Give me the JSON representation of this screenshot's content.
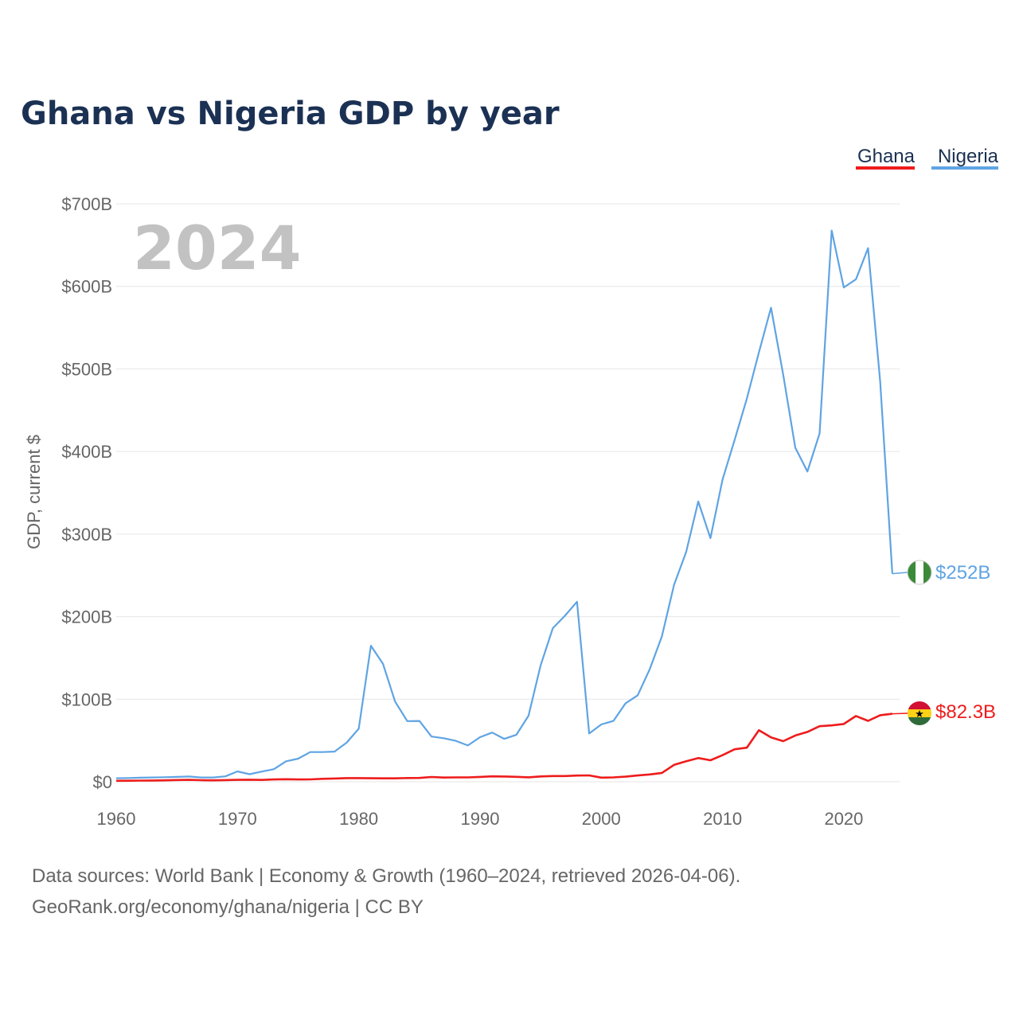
{
  "chart_data": {
    "type": "line",
    "title": "Ghana vs Nigeria GDP by year",
    "ylabel": "GDP, current $",
    "xlabel": "",
    "year_watermark": "2024",
    "xlim": [
      1960,
      2024.6
    ],
    "ylim": [
      0,
      700
    ],
    "y_ticks": [
      {
        "value": 0,
        "label": "$0"
      },
      {
        "value": 100,
        "label": "$100B"
      },
      {
        "value": 200,
        "label": "$200B"
      },
      {
        "value": 300,
        "label": "$300B"
      },
      {
        "value": 400,
        "label": "$400B"
      },
      {
        "value": 500,
        "label": "$500B"
      },
      {
        "value": 600,
        "label": "$600B"
      },
      {
        "value": 700,
        "label": "$700B"
      }
    ],
    "x_ticks": [
      {
        "value": 1960,
        "label": "1960"
      },
      {
        "value": 1970,
        "label": "1970"
      },
      {
        "value": 1980,
        "label": "1980"
      },
      {
        "value": 1990,
        "label": "1990"
      },
      {
        "value": 2000,
        "label": "2000"
      },
      {
        "value": 2010,
        "label": "2010"
      },
      {
        "value": 2020,
        "label": "2020"
      }
    ],
    "x": [
      1960,
      1961,
      1962,
      1963,
      1964,
      1965,
      1966,
      1967,
      1968,
      1969,
      1970,
      1971,
      1972,
      1973,
      1974,
      1975,
      1976,
      1977,
      1978,
      1979,
      1980,
      1981,
      1982,
      1983,
      1984,
      1985,
      1986,
      1987,
      1988,
      1989,
      1990,
      1991,
      1992,
      1993,
      1994,
      1995,
      1996,
      1997,
      1998,
      1999,
      2000,
      2001,
      2002,
      2003,
      2004,
      2005,
      2006,
      2007,
      2008,
      2009,
      2010,
      2011,
      2012,
      2013,
      2014,
      2015,
      2016,
      2017,
      2018,
      2019,
      2020,
      2021,
      2022,
      2023,
      2024
    ],
    "legend_position": "top-right",
    "series": [
      {
        "name": "Ghana",
        "color": "#ee1c1c",
        "end_label": "$82.3B",
        "flag": "ghana-flag",
        "values": [
          1.2,
          1.3,
          1.4,
          1.5,
          1.7,
          2.1,
          2.3,
          1.9,
          1.7,
          2.0,
          2.3,
          2.5,
          2.2,
          2.8,
          3.1,
          2.8,
          2.9,
          3.6,
          4.0,
          4.4,
          4.4,
          4.2,
          4.1,
          4.1,
          4.5,
          4.6,
          5.8,
          5.1,
          5.3,
          5.3,
          5.9,
          6.6,
          6.4,
          6.0,
          5.4,
          6.5,
          6.9,
          6.9,
          7.5,
          7.7,
          5.0,
          5.3,
          6.2,
          7.6,
          8.9,
          10.7,
          20.4,
          24.8,
          28.7,
          26.0,
          32.2,
          39.3,
          41.3,
          62.4,
          53.7,
          49.2,
          56.0,
          60.4,
          67.3,
          68.3,
          70.0,
          79.6,
          73.8,
          80.6,
          82.3
        ]
      },
      {
        "name": "Nigeria",
        "color": "#5fa4e3",
        "end_label": "$252B",
        "flag": "nigeria-flag",
        "values": [
          4.2,
          4.5,
          4.9,
          5.2,
          5.5,
          5.9,
          6.4,
          5.2,
          5.2,
          6.6,
          12.5,
          9.2,
          12.3,
          15.2,
          24.8,
          28.0,
          36.0,
          36.0,
          36.5,
          47.3,
          64.2,
          164.8,
          142.8,
          97.1,
          73.5,
          73.7,
          54.8,
          52.7,
          49.6,
          44.0,
          54.0,
          59.6,
          52.0,
          57.0,
          80.0,
          141.0,
          186.0,
          201.0,
          218.0,
          58.4,
          69.4,
          73.7,
          95.1,
          104.7,
          136.4,
          176.1,
          238.5,
          278.3,
          339.5,
          295.0,
          366.0,
          414.0,
          463.9,
          520.1,
          574.2,
          493.0,
          404.6,
          375.7,
          421.7,
          667.6,
          598.7,
          608.6,
          646.3,
          485.0,
          252.0
        ]
      }
    ]
  },
  "source": {
    "line1": "Data sources: World Bank | Economy & Growth (1960–2024, retrieved 2026-04-06).",
    "line2": "GeoRank.org/economy/ghana/nigeria | CC BY"
  }
}
